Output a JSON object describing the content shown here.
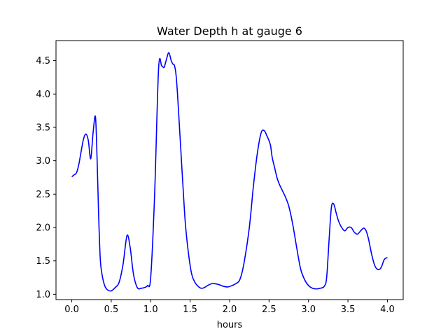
{
  "chart_data": {
    "type": "line",
    "title": "Water Depth h at gauge 6",
    "xlabel": "hours",
    "ylabel": "",
    "xlim": [
      -0.2,
      4.2
    ],
    "ylim": [
      0.92,
      4.8
    ],
    "xticks": [
      0.0,
      0.5,
      1.0,
      1.5,
      2.0,
      2.5,
      3.0,
      3.5,
      4.0
    ],
    "xtick_labels": [
      "0.0",
      "0.5",
      "1.0",
      "1.5",
      "2.0",
      "2.5",
      "3.0",
      "3.5",
      "4.0"
    ],
    "yticks": [
      1.0,
      1.5,
      2.0,
      2.5,
      3.0,
      3.5,
      4.0,
      4.5
    ],
    "ytick_labels": [
      "1.0",
      "1.5",
      "2.0",
      "2.5",
      "3.0",
      "3.5",
      "4.0",
      "4.5"
    ],
    "grid": false,
    "legend": "none",
    "series": [
      {
        "color": "#0000ff",
        "x": [
          0.0,
          0.03,
          0.06,
          0.09,
          0.12,
          0.15,
          0.18,
          0.21,
          0.24,
          0.27,
          0.3,
          0.32,
          0.34,
          0.36,
          0.38,
          0.4,
          0.42,
          0.44,
          0.46,
          0.5,
          0.55,
          0.6,
          0.65,
          0.7,
          0.74,
          0.77,
          0.79,
          0.81,
          0.83,
          0.85,
          0.88,
          0.92,
          0.96,
          1.0,
          1.05,
          1.1,
          1.14,
          1.17,
          1.2,
          1.23,
          1.26,
          1.28,
          1.3,
          1.32,
          1.34,
          1.36,
          1.38,
          1.41,
          1.44,
          1.48,
          1.52,
          1.56,
          1.6,
          1.64,
          1.68,
          1.72,
          1.78,
          1.85,
          1.92,
          1.98,
          2.03,
          2.08,
          2.13,
          2.18,
          2.25,
          2.3,
          2.35,
          2.4,
          2.44,
          2.47,
          2.5,
          2.52,
          2.54,
          2.57,
          2.6,
          2.63,
          2.67,
          2.71,
          2.75,
          2.8,
          2.85,
          2.9,
          2.95,
          3.0,
          3.05,
          3.1,
          3.15,
          3.2,
          3.23,
          3.26,
          3.29,
          3.32,
          3.35,
          3.38,
          3.42,
          3.46,
          3.5,
          3.54,
          3.58,
          3.62,
          3.66,
          3.7,
          3.73,
          3.76,
          3.8,
          3.84,
          3.88,
          3.92,
          3.96,
          4.0
        ],
        "y": [
          2.76,
          2.79,
          2.82,
          2.95,
          3.15,
          3.33,
          3.4,
          3.3,
          3.03,
          3.42,
          3.66,
          3.05,
          2.2,
          1.55,
          1.32,
          1.2,
          1.12,
          1.08,
          1.06,
          1.05,
          1.1,
          1.18,
          1.45,
          1.88,
          1.7,
          1.4,
          1.25,
          1.16,
          1.1,
          1.08,
          1.09,
          1.1,
          1.13,
          1.25,
          2.5,
          4.38,
          4.42,
          4.4,
          4.52,
          4.62,
          4.5,
          4.45,
          4.43,
          4.3,
          4.0,
          3.6,
          3.2,
          2.6,
          2.05,
          1.6,
          1.3,
          1.18,
          1.12,
          1.09,
          1.1,
          1.13,
          1.16,
          1.15,
          1.12,
          1.11,
          1.13,
          1.16,
          1.22,
          1.45,
          2.0,
          2.6,
          3.1,
          3.42,
          3.45,
          3.38,
          3.3,
          3.22,
          3.05,
          2.9,
          2.75,
          2.65,
          2.55,
          2.45,
          2.32,
          2.05,
          1.7,
          1.38,
          1.22,
          1.13,
          1.09,
          1.08,
          1.09,
          1.12,
          1.25,
          1.8,
          2.3,
          2.35,
          2.22,
          2.1,
          2.0,
          1.95,
          2.0,
          2.0,
          1.93,
          1.9,
          1.95,
          1.99,
          1.95,
          1.83,
          1.6,
          1.43,
          1.37,
          1.4,
          1.52,
          1.55
        ]
      }
    ]
  }
}
